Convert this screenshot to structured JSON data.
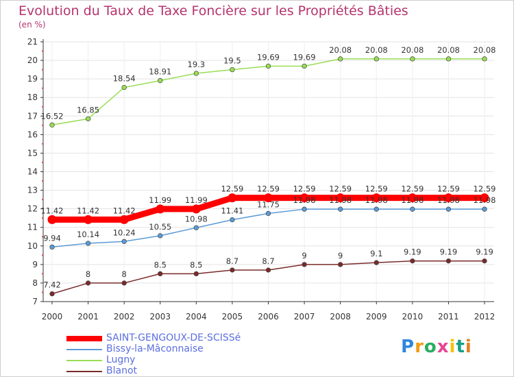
{
  "header": {
    "title": "Evolution du Taux de Taxe Foncière sur les Propriétés Bâties",
    "unit": "(en %)"
  },
  "brand": {
    "logo_text": "Proxiti"
  },
  "chart_data": {
    "type": "line",
    "title": "Evolution du Taux de Taxe Foncière sur les Propriétés Bâties",
    "ylabel": "(en %)",
    "xlabel": "",
    "categories": [
      "2000",
      "2001",
      "2002",
      "2003",
      "2004",
      "2005",
      "2006",
      "2007",
      "2008",
      "2009",
      "2010",
      "2011",
      "2012"
    ],
    "ylim": [
      7,
      21
    ],
    "yticks": [
      7,
      8,
      9,
      10,
      11,
      12,
      13,
      14,
      15,
      16,
      17,
      18,
      19,
      20,
      21
    ],
    "grid": true,
    "legend_position": "bottom-left",
    "series": [
      {
        "name": "SAINT-GENGOUX-DE-SCISSé",
        "color": "#ff0000",
        "values": [
          11.42,
          11.42,
          11.42,
          11.99,
          11.99,
          12.59,
          12.59,
          12.59,
          12.59,
          12.59,
          12.59,
          12.59,
          12.59
        ],
        "labels": [
          "11.42",
          "11.42",
          "11.42",
          "11.99",
          "11.99",
          "12.59",
          "12.59",
          "12.59",
          "12.59",
          "12.59",
          "12.59",
          "12.59",
          "12.59"
        ]
      },
      {
        "name": "Bissy-la-Mâconnaise",
        "color": "#5b9bd5",
        "values": [
          9.94,
          10.14,
          10.24,
          10.55,
          10.98,
          11.41,
          11.75,
          11.98,
          11.98,
          11.98,
          11.98,
          11.98,
          11.98
        ],
        "labels": [
          "9.94",
          "10.14",
          "10.24",
          "10.55",
          "10.98",
          "11.41",
          "11.75",
          "11.98",
          "11.98",
          "11.98",
          "11.98",
          "11.98",
          "11.98"
        ]
      },
      {
        "name": "Lugny",
        "color": "#99dd55",
        "values": [
          16.52,
          16.85,
          18.54,
          18.91,
          19.3,
          19.5,
          19.69,
          19.69,
          20.08,
          20.08,
          20.08,
          20.08,
          20.08
        ],
        "labels": [
          "16.52",
          "16.85",
          "18.54",
          "18.91",
          "19.3",
          "19.5",
          "19.69",
          "19.69",
          "20.08",
          "20.08",
          "20.08",
          "20.08",
          "20.08"
        ]
      },
      {
        "name": "Blanot",
        "color": "#7a2a2a",
        "values": [
          7.42,
          8,
          8,
          8.5,
          8.5,
          8.7,
          8.7,
          9,
          9,
          9.1,
          9.19,
          9.19,
          9.19
        ],
        "labels": [
          "7.42",
          "8",
          "8",
          "8.5",
          "8.5",
          "8.7",
          "8.7",
          "9",
          "9",
          "9.1",
          "9.19",
          "9.19",
          "9.19"
        ]
      }
    ]
  }
}
